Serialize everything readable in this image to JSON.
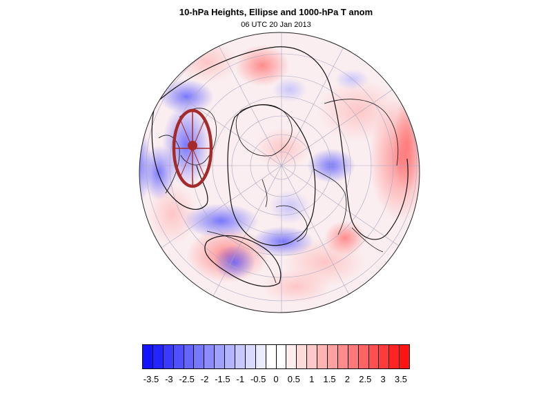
{
  "title": "10-hPa Heights, Ellipse and 1000-hPa T anom",
  "subtitle": "06 UTC 20 Jan 2013",
  "colorbar": {
    "tick_labels": [
      "-3.5",
      "-3",
      "-2.5",
      "-2",
      "-1.5",
      "-1",
      "-0.5",
      "0",
      "0.5",
      "1",
      "1.5",
      "2",
      "2.5",
      "3",
      "3.5"
    ],
    "colors": [
      "#1414ff",
      "#2424ff",
      "#3a3aff",
      "#5050ff",
      "#6464ff",
      "#7878ff",
      "#8c8cff",
      "#a0a0ff",
      "#b4b4ff",
      "#c8c8ff",
      "#dadaff",
      "#ececff",
      "#ffffff",
      "#ffffff",
      "#ffecec",
      "#ffdada",
      "#ffc8c8",
      "#ffb4b4",
      "#ffa0a0",
      "#ff8c8c",
      "#ff7878",
      "#ff6464",
      "#ff5050",
      "#ff3a3a",
      "#ff2424",
      "#ff1414"
    ]
  },
  "map": {
    "projection": "polar stereographic (north pole)",
    "field": "1000-hPa temperature anomaly",
    "contours": "10-hPa geopotential heights",
    "ellipse_color": "#a52a2a",
    "positive_color": "#ff2a2a",
    "negative_color": "#2a2aff"
  }
}
